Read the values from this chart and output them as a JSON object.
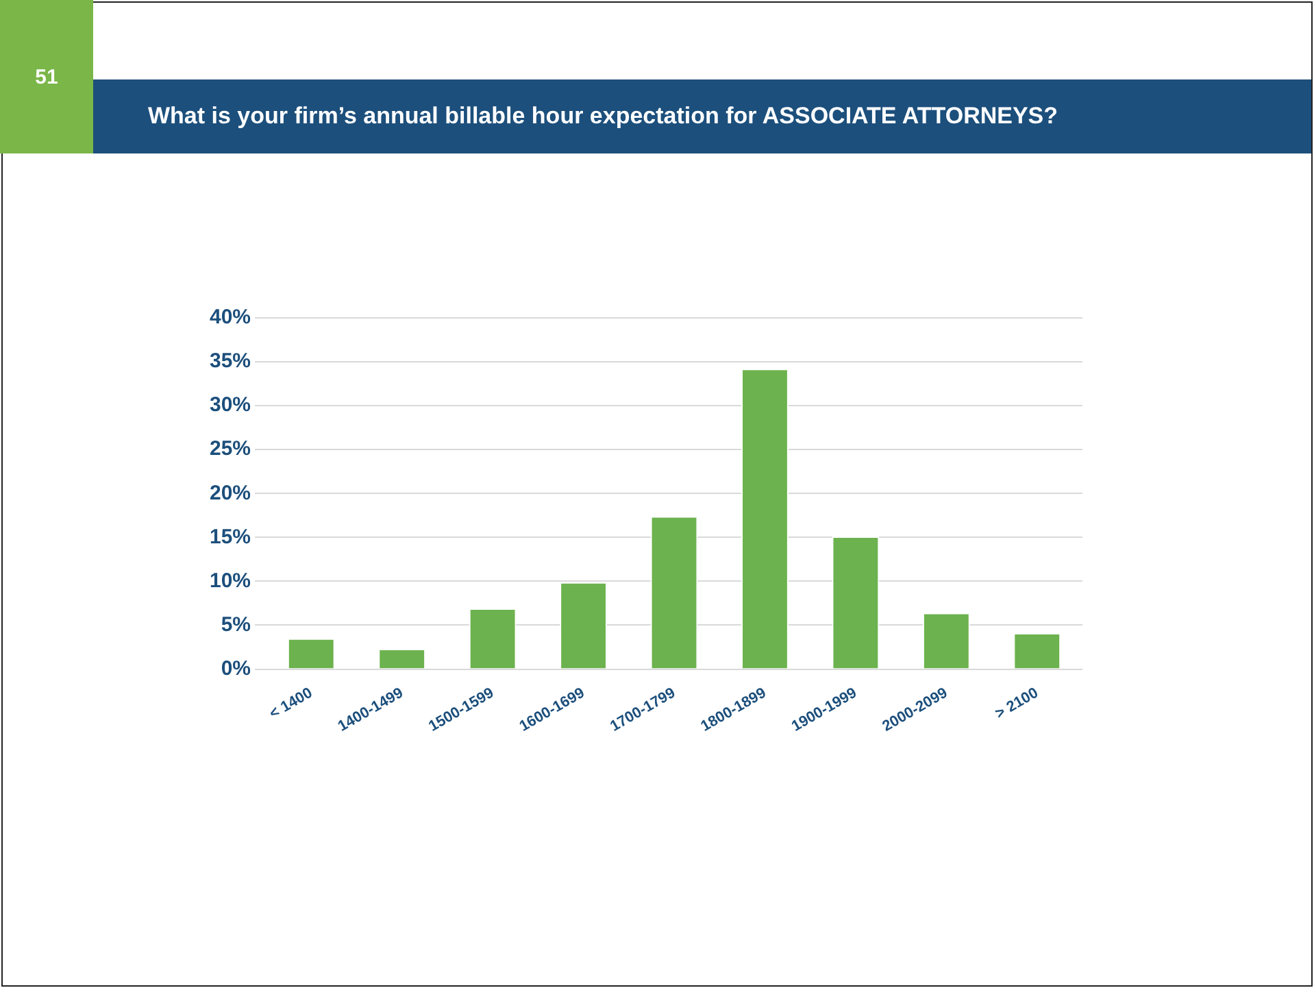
{
  "chart_data": {
    "type": "bar",
    "title": "What is your firm’s annual billable hour expectation for ASSOCIATE ATTORNEYS?",
    "annotations": [
      "51"
    ],
    "categories": [
      "< 1400",
      "1400-1499",
      "1500-1599",
      "1600-1699",
      "1700-1799",
      "1800-1899",
      "1900-1999",
      "2000-2099",
      "> 2100"
    ],
    "values": [
      3.5,
      2.3,
      6.9,
      9.9,
      17.4,
      34.2,
      15.1,
      6.4,
      4.1
    ],
    "color": "#6cb24e",
    "ylim": [
      0,
      40
    ],
    "yticks": [
      {
        "value": 0,
        "label": "0%"
      },
      {
        "value": 5,
        "label": "5%"
      },
      {
        "value": 10,
        "label": "10%"
      },
      {
        "value": 15,
        "label": "15%"
      },
      {
        "value": 20,
        "label": "20%"
      },
      {
        "value": 25,
        "label": "25%"
      },
      {
        "value": 30,
        "label": "30%"
      },
      {
        "value": 35,
        "label": "35%"
      },
      {
        "value": 40,
        "label": "40%"
      }
    ],
    "grid": "y",
    "legend": false
  }
}
